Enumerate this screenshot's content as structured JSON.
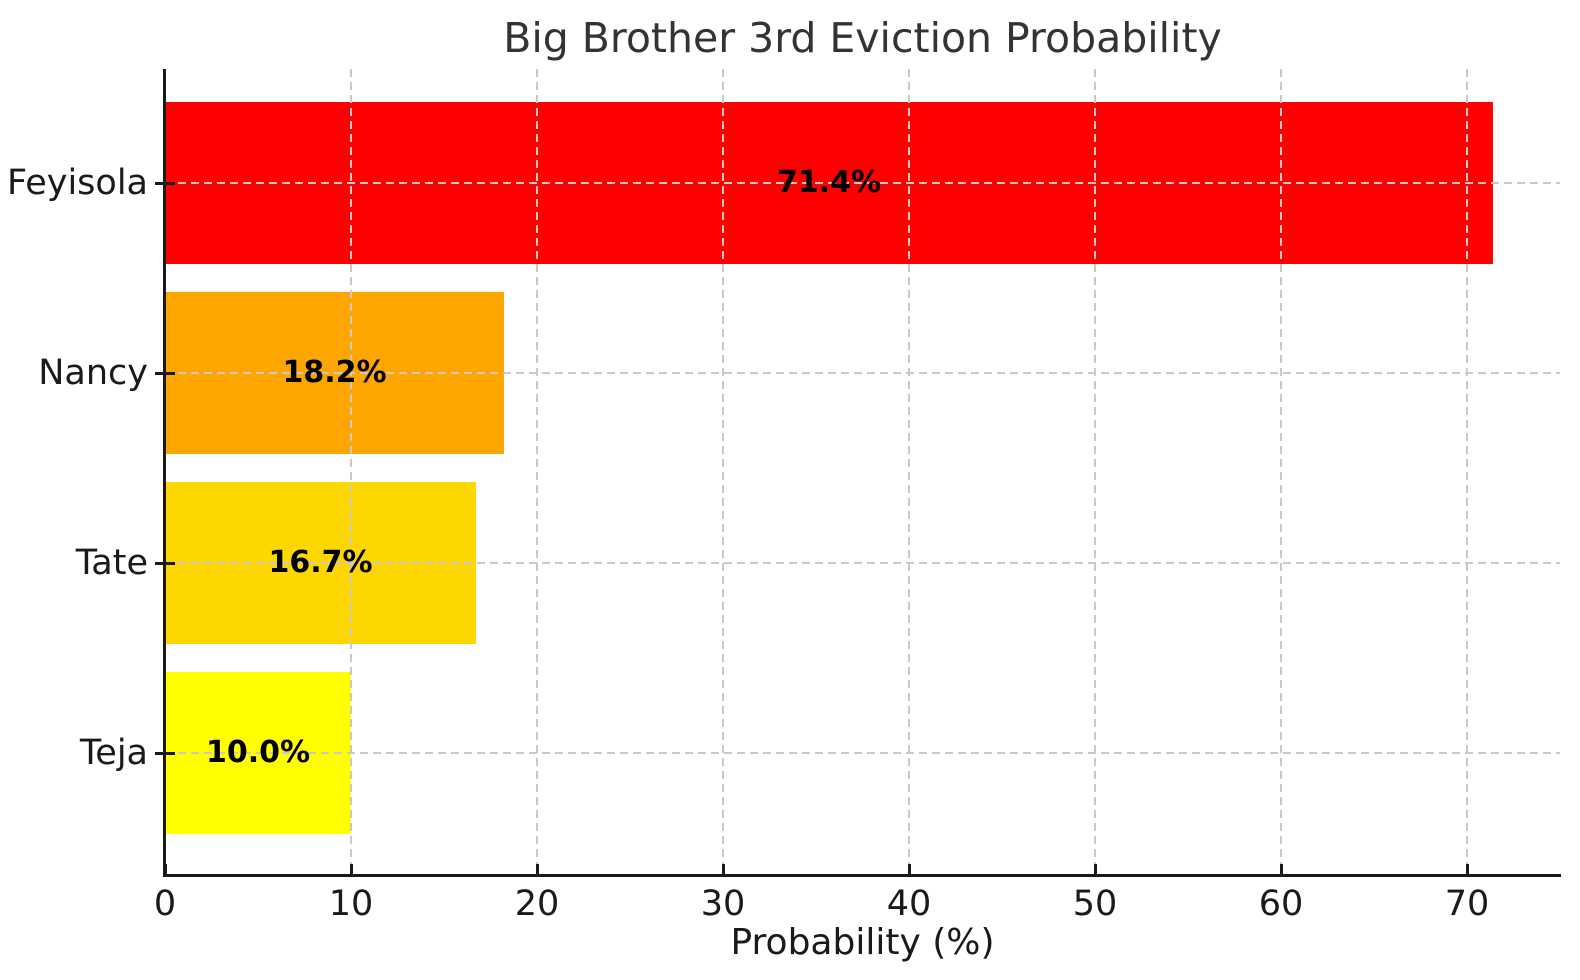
{
  "chart_data": {
    "type": "bar",
    "orientation": "horizontal",
    "title": "Big Brother 3rd Eviction Probability",
    "xlabel": "Probability (%)",
    "ylabel": "",
    "categories": [
      "Feyisola",
      "Nancy",
      "Tate",
      "Teja"
    ],
    "values": [
      71.4,
      18.2,
      16.7,
      10.0
    ],
    "value_labels": [
      "71.4%",
      "18.2%",
      "16.7%",
      "10.0%"
    ],
    "bar_colors": [
      "#ff0000",
      "#ffa500",
      "#ffd700",
      "#ffff00"
    ],
    "xlim": [
      0,
      75
    ],
    "xticks": [
      0,
      10,
      20,
      30,
      40,
      50,
      60,
      70
    ],
    "xtick_labels": [
      "0",
      "10",
      "20",
      "30",
      "40",
      "50",
      "60",
      "70"
    ],
    "grid": "dashed",
    "legend": "none",
    "colors": {
      "grid": "#c9c9c9",
      "spine": "#1a1a1a",
      "title_text": "#333333",
      "tick_text": "#1a1a1a",
      "value_label_text": "#000000",
      "background": "#ffffff"
    }
  }
}
